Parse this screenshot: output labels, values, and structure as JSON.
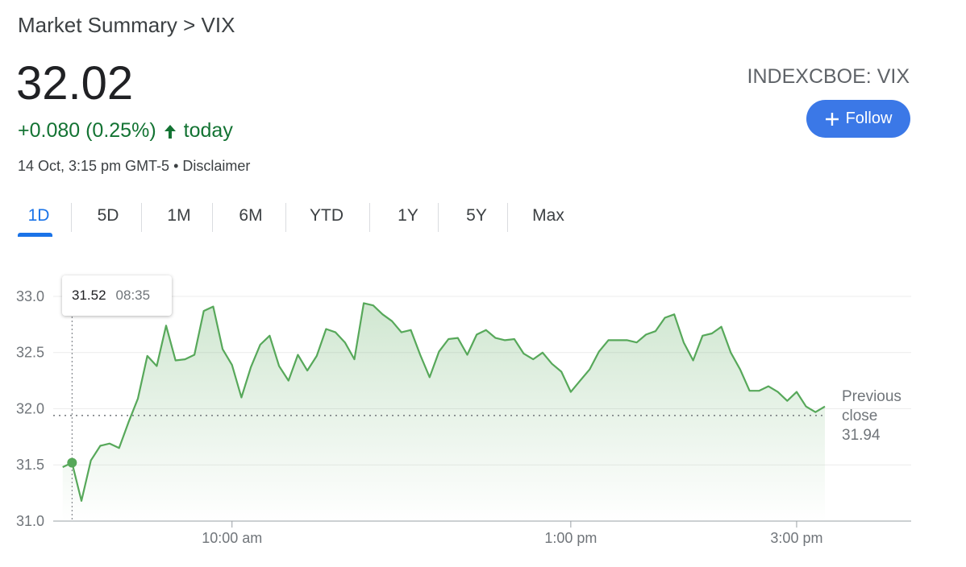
{
  "header": {
    "breadcrumb": "Market Summary > VIX",
    "price": "32.02",
    "change": "+0.080 (0.25%)",
    "change_period": "today",
    "timestamp": "14 Oct, 3:15 pm GMT-5 • Disclaimer",
    "ticker": "INDEXCBOE: VIX",
    "follow_button": "Follow"
  },
  "tabs": {
    "items": [
      "1D",
      "5D",
      "1M",
      "6M",
      "YTD",
      "1Y",
      "5Y",
      "Max"
    ],
    "selected": 0
  },
  "chart_data": {
    "type": "line",
    "color": "#57a85a",
    "x": [
      510,
      515,
      520,
      525,
      530,
      535,
      540,
      545,
      550,
      555,
      560,
      565,
      570,
      575,
      580,
      585,
      590,
      595,
      600,
      605,
      610,
      615,
      620,
      625,
      630,
      635,
      640,
      645,
      650,
      655,
      660,
      665,
      670,
      675,
      680,
      685,
      690,
      695,
      700,
      705,
      710,
      715,
      720,
      725,
      730,
      735,
      740,
      745,
      750,
      755,
      760,
      765,
      770,
      775,
      780,
      785,
      790,
      795,
      800,
      805,
      810,
      815,
      820,
      825,
      830,
      835,
      840,
      845,
      850,
      855,
      860,
      865,
      870,
      875,
      880,
      885,
      890,
      895,
      900,
      905,
      910,
      915
    ],
    "values": [
      31.48,
      31.52,
      31.18,
      31.54,
      31.67,
      31.69,
      31.65,
      31.88,
      32.09,
      32.47,
      32.38,
      32.74,
      32.43,
      32.44,
      32.48,
      32.87,
      32.91,
      32.53,
      32.39,
      32.1,
      32.37,
      32.57,
      32.65,
      32.38,
      32.25,
      32.48,
      32.34,
      32.47,
      32.71,
      32.68,
      32.59,
      32.44,
      32.94,
      32.92,
      32.84,
      32.78,
      32.68,
      32.7,
      32.48,
      32.28,
      32.51,
      32.62,
      32.63,
      32.48,
      32.66,
      32.7,
      32.63,
      32.61,
      32.62,
      32.49,
      32.44,
      32.5,
      32.4,
      32.33,
      32.15,
      32.25,
      32.35,
      32.51,
      32.61,
      32.61,
      32.61,
      32.59,
      32.66,
      32.69,
      32.81,
      32.84,
      32.59,
      32.43,
      32.65,
      32.67,
      32.73,
      32.5,
      32.35,
      32.16,
      32.16,
      32.2,
      32.15,
      32.07,
      32.15,
      32.02,
      31.97,
      32.02
    ],
    "xlim": [
      505,
      960
    ],
    "xticks": [
      {
        "value": 600,
        "label": "10:00 am"
      },
      {
        "value": 780,
        "label": "1:00 pm"
      },
      {
        "value": 900,
        "label": "3:00 pm"
      }
    ],
    "ylim": [
      31,
      33
    ],
    "yticks": [
      {
        "value": 31,
        "label": "31.0"
      },
      {
        "value": 31.5,
        "label": "31.5"
      },
      {
        "value": 32,
        "label": "32.0"
      },
      {
        "value": 32.5,
        "label": "32.5"
      },
      {
        "value": 33,
        "label": "33.0"
      }
    ],
    "grid": true,
    "previous_close": {
      "label": "Previous close",
      "value": 31.94
    },
    "tooltip": {
      "value": 31.52,
      "time": "08:35"
    }
  }
}
